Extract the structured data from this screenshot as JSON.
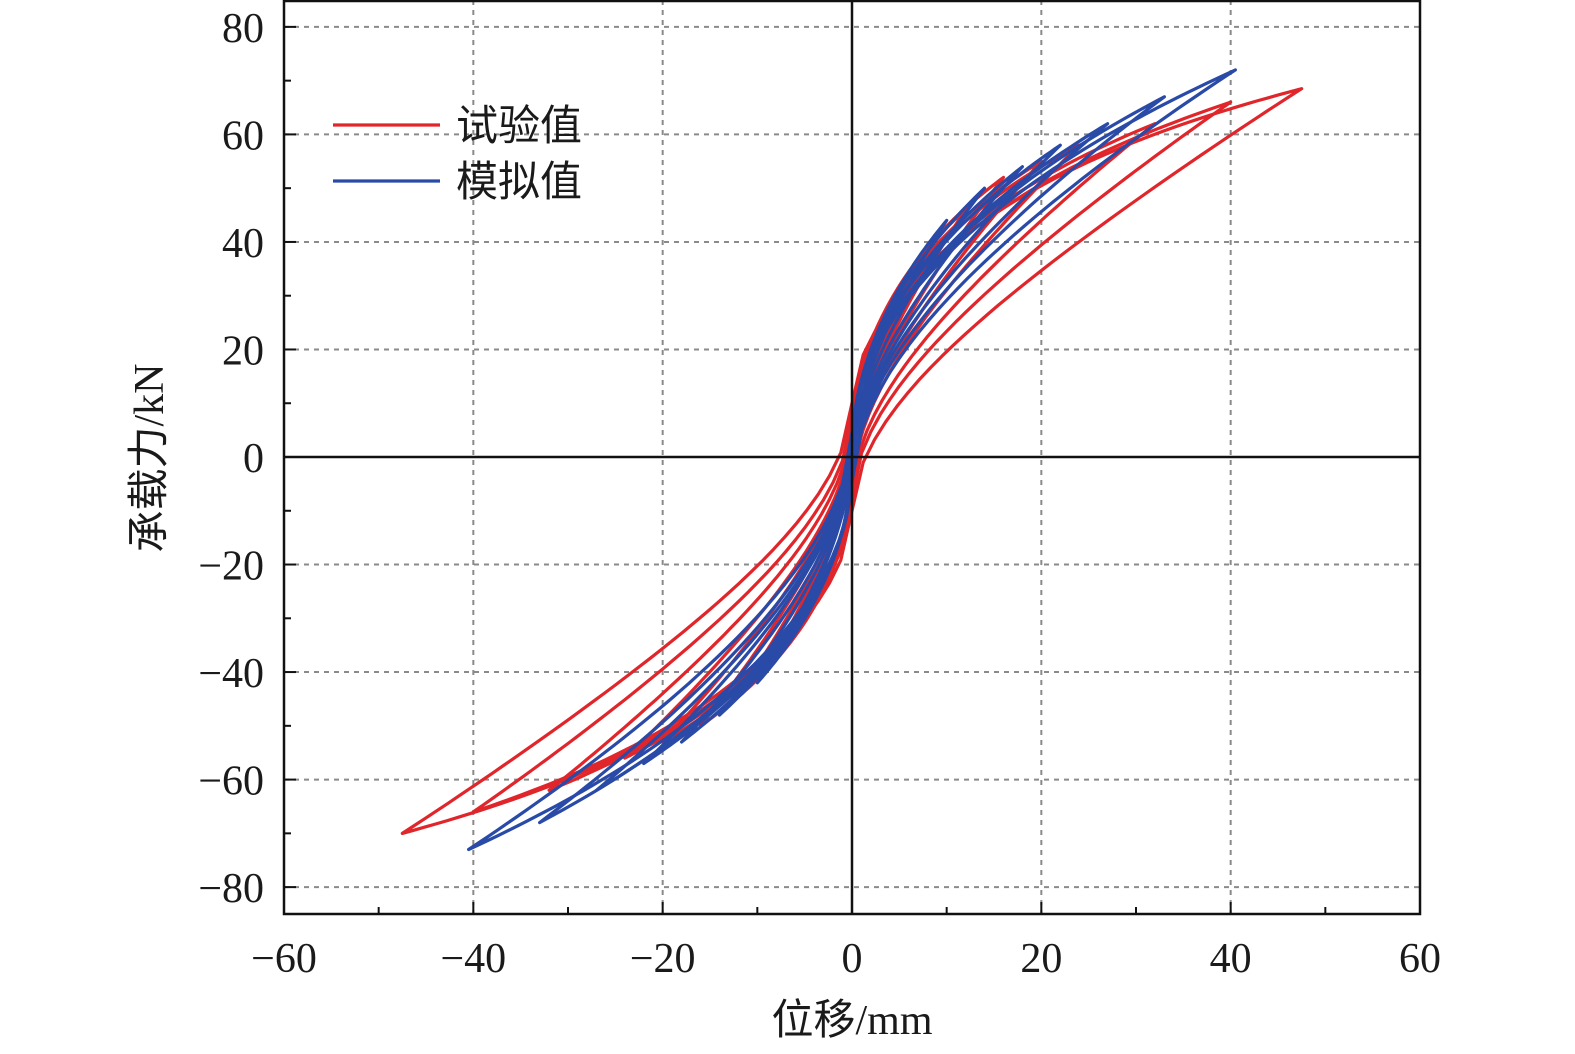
{
  "chart_data": {
    "type": "line",
    "xlabel": "位移/mm",
    "ylabel": "承载力/kN",
    "xlim": [
      -60,
      60
    ],
    "ylim": [
      -85,
      85
    ],
    "xticks": [
      -60,
      -40,
      -20,
      0,
      20,
      40,
      60
    ],
    "yticks": [
      -80,
      -60,
      -40,
      -20,
      0,
      20,
      40,
      60,
      80
    ],
    "xtick_labels": [
      "−60",
      "−40",
      "−20",
      "0",
      "20",
      "40",
      "60"
    ],
    "ytick_labels": [
      "−80",
      "−60",
      "−40",
      "−20",
      "0",
      "20",
      "40",
      "60",
      "80"
    ],
    "grid": true,
    "legend_position": "top-left",
    "series": [
      {
        "name": "试验值",
        "color": "#e0262b",
        "loops": [
          {
            "xmax": 8,
            "xmin": -8,
            "fpos": 38,
            "fneg": -36,
            "w": 6
          },
          {
            "xmax": 12,
            "xmin": -12,
            "fpos": 46,
            "fneg": -44,
            "w": 8
          },
          {
            "xmax": 16,
            "xmin": -16,
            "fpos": 52,
            "fneg": -50,
            "w": 10
          },
          {
            "xmax": 20,
            "xmin": -20,
            "fpos": 55,
            "fneg": -53,
            "w": 11
          },
          {
            "xmax": 24,
            "xmin": -24,
            "fpos": 58,
            "fneg": -56,
            "w": 12
          },
          {
            "xmax": 32,
            "xmin": -32,
            "fpos": 62,
            "fneg": -62,
            "w": 14
          },
          {
            "xmax": 40,
            "xmin": -40,
            "fpos": 66,
            "fneg": -66,
            "w": 16
          },
          {
            "xmax": 47.5,
            "xmin": -47.5,
            "fpos": 68.5,
            "fneg": -70,
            "w": 20
          }
        ]
      },
      {
        "name": "模拟值",
        "color": "#2a4aa8",
        "loops": [
          {
            "xmax": 6,
            "xmin": -6,
            "fpos": 34,
            "fneg": -32,
            "w": 3
          },
          {
            "xmax": 10,
            "xmin": -10,
            "fpos": 44,
            "fneg": -42,
            "w": 4
          },
          {
            "xmax": 14,
            "xmin": -14,
            "fpos": 50,
            "fneg": -48,
            "w": 5
          },
          {
            "xmax": 18,
            "xmin": -18,
            "fpos": 54,
            "fneg": -53,
            "w": 6
          },
          {
            "xmax": 22,
            "xmin": -22,
            "fpos": 58,
            "fneg": -57,
            "w": 7
          },
          {
            "xmax": 27,
            "xmin": -27,
            "fpos": 62,
            "fneg": -62,
            "w": 7
          },
          {
            "xmax": 33,
            "xmin": -33,
            "fpos": 67,
            "fneg": -68,
            "w": 8
          },
          {
            "xmax": 40.5,
            "xmin": -40.5,
            "fpos": 72,
            "fneg": -73,
            "w": 9
          }
        ]
      }
    ]
  }
}
